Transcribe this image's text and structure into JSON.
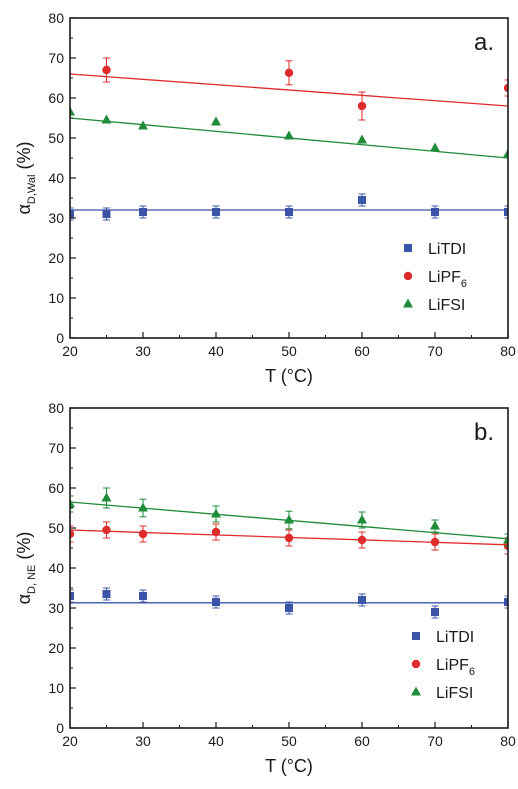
{
  "chart_data": [
    {
      "type": "scatter",
      "panel_label": "a.",
      "xlabel": "T (°C)",
      "ylabel": {
        "base": "α",
        "sub": "D,Wal",
        "unit": "(%)"
      },
      "xlim": [
        20,
        80
      ],
      "ylim": [
        0,
        80
      ],
      "xticks": [
        20,
        30,
        40,
        50,
        60,
        70,
        80
      ],
      "yticks": [
        0,
        10,
        20,
        30,
        40,
        50,
        60,
        70,
        80
      ],
      "legend_position": "bottom-right",
      "series": [
        {
          "name": "LiTDI",
          "color": "#3b54a8",
          "marker": "square",
          "points": [
            {
              "x": 20,
              "y": 31,
              "err": 1.5
            },
            {
              "x": 25,
              "y": 31,
              "err": 1.5
            },
            {
              "x": 30,
              "y": 31.5,
              "err": 1.5
            },
            {
              "x": 40,
              "y": 31.5,
              "err": 1.5
            },
            {
              "x": 50,
              "y": 31.5,
              "err": 1.5
            },
            {
              "x": 60,
              "y": 34.5,
              "err": 1.5
            },
            {
              "x": 70,
              "y": 31.5,
              "err": 1.5
            },
            {
              "x": 80,
              "y": 31.5,
              "err": 1.5
            }
          ],
          "fit": [
            [
              20,
              32
            ],
            [
              80,
              32
            ]
          ]
        },
        {
          "name": "LiPF6",
          "name_main": "LiPF",
          "name_sub": "6",
          "color": "#e02b2b",
          "marker": "circle",
          "points": [
            {
              "x": 25,
              "y": 67,
              "err": 3
            },
            {
              "x": 50,
              "y": 66.3,
              "err": 3
            },
            {
              "x": 60,
              "y": 58,
              "err": 3.5
            },
            {
              "x": 80,
              "y": 62.5,
              "err": 2
            }
          ],
          "fit": [
            [
              20,
              66
            ],
            [
              80,
              58
            ]
          ]
        },
        {
          "name": "LiFSI",
          "color": "#1e8c3a",
          "marker": "triangle",
          "points": [
            {
              "x": 20,
              "y": 56.5
            },
            {
              "x": 25,
              "y": 54.5
            },
            {
              "x": 30,
              "y": 53
            },
            {
              "x": 40,
              "y": 54
            },
            {
              "x": 50,
              "y": 50.5
            },
            {
              "x": 60,
              "y": 49.5
            },
            {
              "x": 70,
              "y": 47.5
            },
            {
              "x": 80,
              "y": 46
            }
          ],
          "fit": [
            [
              20,
              55
            ],
            [
              80,
              45
            ]
          ]
        }
      ]
    },
    {
      "type": "scatter",
      "panel_label": "b.",
      "xlabel": "T (°C)",
      "ylabel": {
        "base": "α",
        "sub": "D, NE",
        "unit": "(%)"
      },
      "xlim": [
        20,
        80
      ],
      "ylim": [
        0,
        80
      ],
      "xticks": [
        20,
        30,
        40,
        50,
        60,
        70,
        80
      ],
      "yticks": [
        0,
        10,
        20,
        30,
        40,
        50,
        60,
        70,
        80
      ],
      "legend_position": "bottom-right",
      "series": [
        {
          "name": "LiTDI",
          "color": "#3b54a8",
          "marker": "square",
          "points": [
            {
              "x": 20,
              "y": 33,
              "err": 1.5
            },
            {
              "x": 25,
              "y": 33.5,
              "err": 1.5
            },
            {
              "x": 30,
              "y": 33,
              "err": 1.5
            },
            {
              "x": 40,
              "y": 31.5,
              "err": 1.5
            },
            {
              "x": 50,
              "y": 30,
              "err": 1.5
            },
            {
              "x": 60,
              "y": 32,
              "err": 1.5
            },
            {
              "x": 70,
              "y": 29,
              "err": 1.5
            },
            {
              "x": 80,
              "y": 31.5,
              "err": 1.5
            }
          ],
          "fit": [
            [
              20,
              31.3
            ],
            [
              80,
              31.3
            ]
          ]
        },
        {
          "name": "LiPF6",
          "name_main": "LiPF",
          "name_sub": "6",
          "color": "#e02b2b",
          "marker": "circle",
          "points": [
            {
              "x": 20,
              "y": 48.5,
              "err": 2
            },
            {
              "x": 25,
              "y": 49.5,
              "err": 2
            },
            {
              "x": 30,
              "y": 48.5,
              "err": 2
            },
            {
              "x": 40,
              "y": 49,
              "err": 2
            },
            {
              "x": 50,
              "y": 47.5,
              "err": 2
            },
            {
              "x": 60,
              "y": 47,
              "err": 2
            },
            {
              "x": 70,
              "y": 46.5,
              "err": 2
            },
            {
              "x": 80,
              "y": 45.5,
              "err": 2
            }
          ],
          "fit": [
            [
              20,
              49.5
            ],
            [
              80,
              45.8
            ]
          ]
        },
        {
          "name": "LiFSI",
          "color": "#1e8c3a",
          "marker": "triangle",
          "points": [
            {
              "x": 20,
              "y": 56,
              "err": 2
            },
            {
              "x": 25,
              "y": 57.5,
              "err": 2.5
            },
            {
              "x": 30,
              "y": 55,
              "err": 2.2
            },
            {
              "x": 40,
              "y": 53.5,
              "err": 2
            },
            {
              "x": 50,
              "y": 52,
              "err": 2.2
            },
            {
              "x": 60,
              "y": 52,
              "err": 2
            },
            {
              "x": 70,
              "y": 50.5,
              "err": 1.5
            },
            {
              "x": 80,
              "y": 47,
              "err": 1.5
            }
          ],
          "fit": [
            [
              20,
              56.5
            ],
            [
              80,
              47.3
            ]
          ]
        }
      ]
    }
  ]
}
